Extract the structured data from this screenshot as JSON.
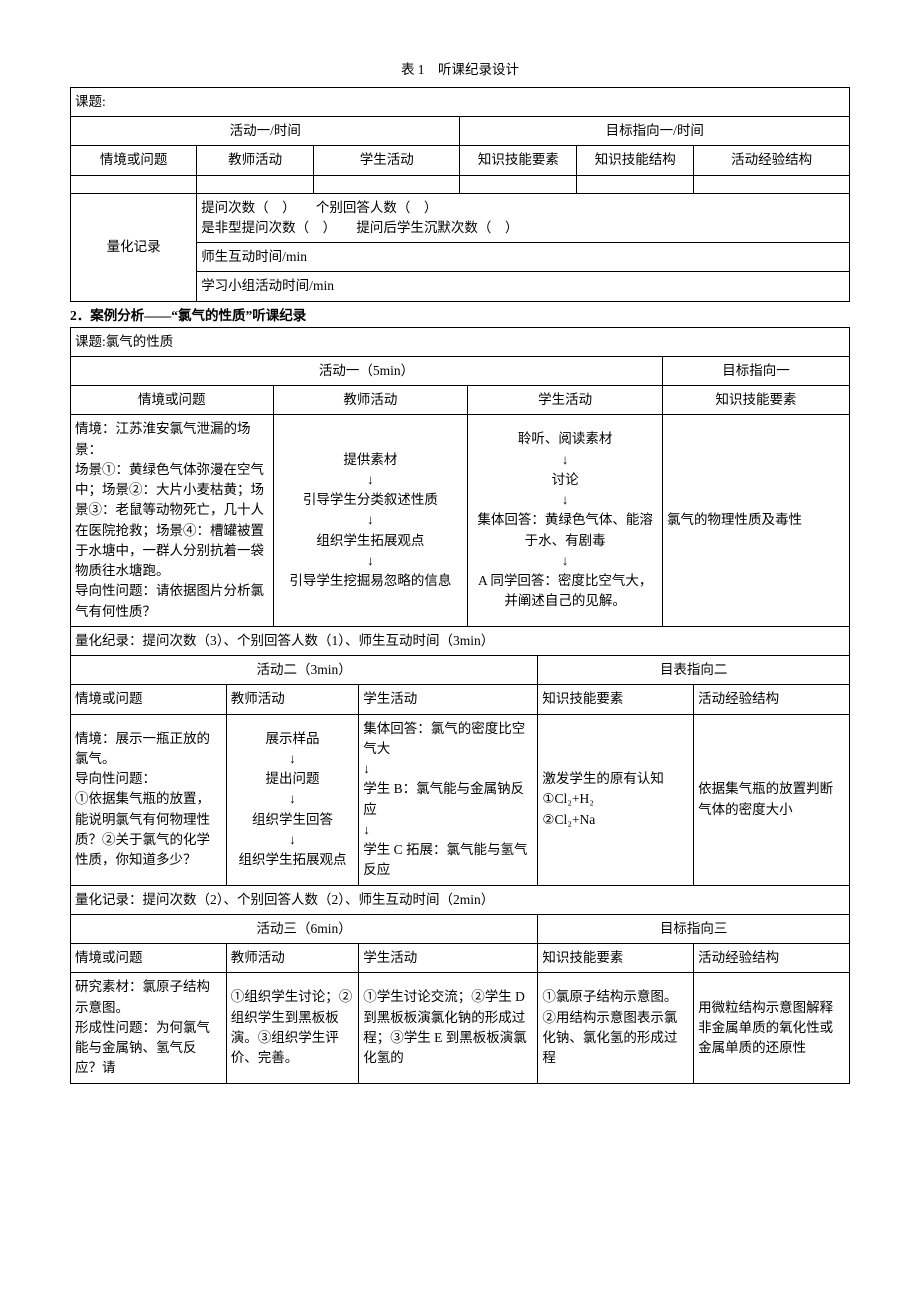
{
  "caption1": "表 1　听课纪录设计",
  "t1": {
    "topic_label": "课题:",
    "act_header": "活动一/时间",
    "goal_header": "目标指向一/时间",
    "c1": "情境或问题",
    "c2": "教师活动",
    "c3": "学生活动",
    "c4": "知识技能要素",
    "c5": "知识技能结构",
    "c6": "活动经验结构",
    "quant_label": "量化记录",
    "quant_line1": "提问次数（　）　　个别回答人数（　）",
    "quant_line2": "是非型提问次数（　）　　提问后学生沉默次数（　）",
    "quant_line3": "师生互动时间/min",
    "quant_line4": "学习小组活动时间/min"
  },
  "case_title": "2．案例分析——“氯气的性质”听课纪录",
  "t2": {
    "topic": "课题:氯气的性质",
    "act1_header": "活动一（5min）",
    "goal1_header": "目标指向一",
    "h1": "情境或问题",
    "h2": "教师活动",
    "h3": "学生活动",
    "h4": "知识技能要素",
    "r1c1": "情境：江苏淮安氯气泄漏的场景：\n场景①：黄绿色气体弥漫在空气中；场景②：大片小麦枯黄；场景③：老鼠等动物死亡，几十人在医院抢救；场景④：槽罐被置于水塘中，一群人分别抗着一袋物质往水塘跑。\n导向性问题：请依据图片分析氯气有何性质？",
    "r1c2": "提供素材\n↓\n引导学生分类叙述性质\n↓\n组织学生拓展观点\n↓\n引导学生挖掘易忽略的信息",
    "r1c3": "聆听、阅读素材\n↓\n讨论\n↓\n集体回答：黄绿色气体、能溶于水、有剧毒\n↓\nA 同学回答：密度比空气大，并阐述自己的见解。",
    "r1c4": "氯气的物理性质及毒性",
    "quant1": "量化纪录：提问次数（3）、个别回答人数（1）、师生互动时间（3min）",
    "act2_header": "活动二（3min）",
    "goal2_header": "目表指向二",
    "h5": "活动经验结构",
    "r2c1": "情境：展示一瓶正放的氯气。\n导向性问题：\n①依据集气瓶的放置，能说明氯气有何物理性质？②关于氯气的化学性质，你知道多少？",
    "r2c2": "展示样品\n↓\n提出问题\n↓\n组织学生回答\n↓\n组织学生拓展观点",
    "r2c3": "集体回答：氯气的密度比空气大\n↓\n学生 B：氯气能与金属钠反应\n↓\n学生 C 拓展：氯气能与氢气反应",
    "r2c4": "激发学生的原有认知\n①Cl₂+H₂\n②Cl₂+Na",
    "r2c5": "依据集气瓶的放置判断气体的密度大小",
    "quant2": "量化记录：提问次数（2）、个别回答人数（2）、师生互动时间（2min）",
    "act3_header": "活动三（6min）",
    "goal3_header": "目标指向三",
    "r3c1": "研究素材：氯原子结构示意图。\n形成性问题：为何氯气能与金属钠、氢气反应？请",
    "r3c2": "①组织学生讨论；②组织学生到黑板板演。③组织学生评价、完善。",
    "r3c3": "①学生讨论交流；②学生 D 到黑板板演氯化钠的形成过程；③学生 E 到黑板板演氯化氢的",
    "r3c4": "①氯原子结构示意图。②用结构示意图表示氯化钠、氯化氢的形成过程",
    "r3c5": "用微粒结构示意图解释非金属单质的氧化性或金属单质的还原性"
  }
}
